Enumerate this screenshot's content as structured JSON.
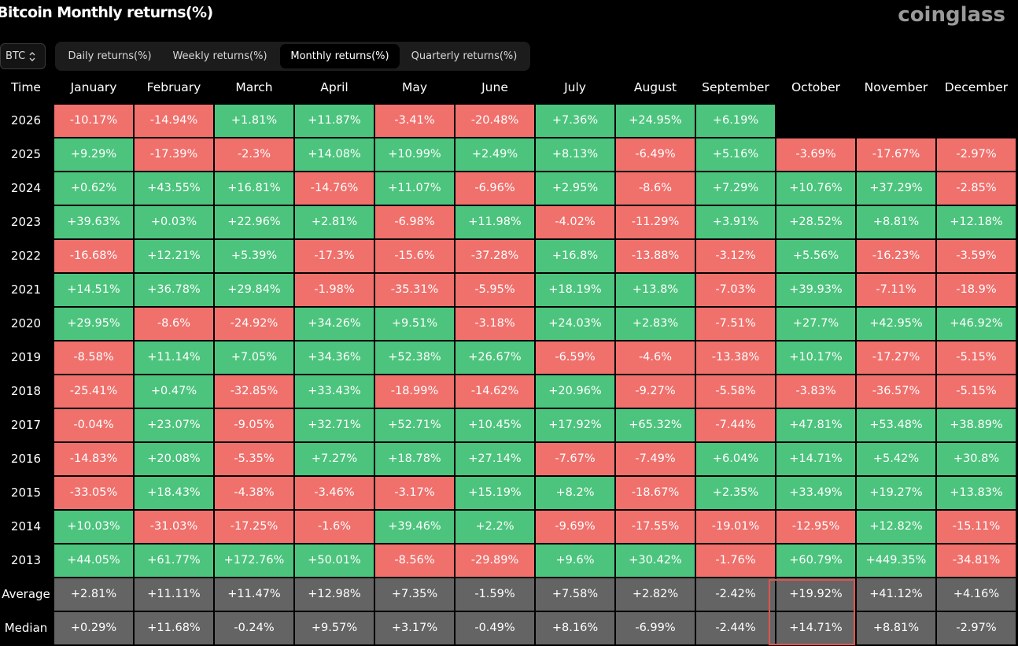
{
  "title": "Bitcoin Monthly returns(%)",
  "logo": "coinglass",
  "coin_select": {
    "value": "BTC"
  },
  "tabs": [
    {
      "label": "Daily returns(%)",
      "active": false
    },
    {
      "label": "Weekly returns(%)",
      "active": false
    },
    {
      "label": "Monthly returns(%)",
      "active": true
    },
    {
      "label": "Quarterly returns(%)",
      "active": false
    }
  ],
  "colors": {
    "positive": "#4cc47d",
    "negative": "#f0706c",
    "stat": "#646464",
    "highlight": "#e0534f"
  },
  "table": {
    "time_header": "Time",
    "months": [
      "January",
      "February",
      "March",
      "April",
      "May",
      "June",
      "July",
      "August",
      "September",
      "October",
      "November",
      "December"
    ],
    "rows": [
      {
        "label": "2026",
        "cells": [
          "-10.17%",
          "-14.94%",
          "+1.81%",
          "+11.87%",
          "-3.41%",
          "-20.48%",
          "+7.36%",
          "+24.95%",
          "+6.19%",
          "",
          "",
          ""
        ]
      },
      {
        "label": "2025",
        "cells": [
          "+9.29%",
          "-17.39%",
          "-2.3%",
          "+14.08%",
          "+10.99%",
          "+2.49%",
          "+8.13%",
          "-6.49%",
          "+5.16%",
          "-3.69%",
          "-17.67%",
          "-2.97%"
        ]
      },
      {
        "label": "2024",
        "cells": [
          "+0.62%",
          "+43.55%",
          "+16.81%",
          "-14.76%",
          "+11.07%",
          "-6.96%",
          "+2.95%",
          "-8.6%",
          "+7.29%",
          "+10.76%",
          "+37.29%",
          "-2.85%"
        ]
      },
      {
        "label": "2023",
        "cells": [
          "+39.63%",
          "+0.03%",
          "+22.96%",
          "+2.81%",
          "-6.98%",
          "+11.98%",
          "-4.02%",
          "-11.29%",
          "+3.91%",
          "+28.52%",
          "+8.81%",
          "+12.18%"
        ]
      },
      {
        "label": "2022",
        "cells": [
          "-16.68%",
          "+12.21%",
          "+5.39%",
          "-17.3%",
          "-15.6%",
          "-37.28%",
          "+16.8%",
          "-13.88%",
          "-3.12%",
          "+5.56%",
          "-16.23%",
          "-3.59%"
        ]
      },
      {
        "label": "2021",
        "cells": [
          "+14.51%",
          "+36.78%",
          "+29.84%",
          "-1.98%",
          "-35.31%",
          "-5.95%",
          "+18.19%",
          "+13.8%",
          "-7.03%",
          "+39.93%",
          "-7.11%",
          "-18.9%"
        ]
      },
      {
        "label": "2020",
        "cells": [
          "+29.95%",
          "-8.6%",
          "-24.92%",
          "+34.26%",
          "+9.51%",
          "-3.18%",
          "+24.03%",
          "+2.83%",
          "-7.51%",
          "+27.7%",
          "+42.95%",
          "+46.92%"
        ]
      },
      {
        "label": "2019",
        "cells": [
          "-8.58%",
          "+11.14%",
          "+7.05%",
          "+34.36%",
          "+52.38%",
          "+26.67%",
          "-6.59%",
          "-4.6%",
          "-13.38%",
          "+10.17%",
          "-17.27%",
          "-5.15%"
        ]
      },
      {
        "label": "2018",
        "cells": [
          "-25.41%",
          "+0.47%",
          "-32.85%",
          "+33.43%",
          "-18.99%",
          "-14.62%",
          "+20.96%",
          "-9.27%",
          "-5.58%",
          "-3.83%",
          "-36.57%",
          "-5.15%"
        ]
      },
      {
        "label": "2017",
        "cells": [
          "-0.04%",
          "+23.07%",
          "-9.05%",
          "+32.71%",
          "+52.71%",
          "+10.45%",
          "+17.92%",
          "+65.32%",
          "-7.44%",
          "+47.81%",
          "+53.48%",
          "+38.89%"
        ]
      },
      {
        "label": "2016",
        "cells": [
          "-14.83%",
          "+20.08%",
          "-5.35%",
          "+7.27%",
          "+18.78%",
          "+27.14%",
          "-7.67%",
          "-7.49%",
          "+6.04%",
          "+14.71%",
          "+5.42%",
          "+30.8%"
        ]
      },
      {
        "label": "2015",
        "cells": [
          "-33.05%",
          "+18.43%",
          "-4.38%",
          "-3.46%",
          "-3.17%",
          "+15.19%",
          "+8.2%",
          "-18.67%",
          "+2.35%",
          "+33.49%",
          "+19.27%",
          "+13.83%"
        ]
      },
      {
        "label": "2014",
        "cells": [
          "+10.03%",
          "-31.03%",
          "-17.25%",
          "-1.6%",
          "+39.46%",
          "+2.2%",
          "-9.69%",
          "-17.55%",
          "-19.01%",
          "-12.95%",
          "+12.82%",
          "-15.11%"
        ]
      },
      {
        "label": "2013",
        "cells": [
          "+44.05%",
          "+61.77%",
          "+172.76%",
          "+50.01%",
          "-8.56%",
          "-29.89%",
          "+9.6%",
          "+30.42%",
          "-1.76%",
          "+60.79%",
          "+449.35%",
          "-34.81%"
        ]
      }
    ],
    "stats": [
      {
        "label": "Average",
        "cells": [
          "+2.81%",
          "+11.11%",
          "+11.47%",
          "+12.98%",
          "+7.35%",
          "-1.59%",
          "+7.58%",
          "+2.82%",
          "-2.42%",
          "+19.92%",
          "+41.12%",
          "+4.16%"
        ]
      },
      {
        "label": "Median",
        "cells": [
          "+0.29%",
          "+11.68%",
          "-0.24%",
          "+9.57%",
          "+3.17%",
          "-0.49%",
          "+8.16%",
          "-6.99%",
          "-2.44%",
          "+14.71%",
          "+8.81%",
          "-2.97%"
        ]
      }
    ],
    "highlighted_month": "October"
  }
}
